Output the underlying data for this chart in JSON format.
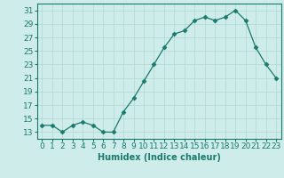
{
  "x": [
    0,
    1,
    2,
    3,
    4,
    5,
    6,
    7,
    8,
    9,
    10,
    11,
    12,
    13,
    14,
    15,
    16,
    17,
    18,
    19,
    20,
    21,
    22,
    23
  ],
  "y": [
    14,
    14,
    13,
    14,
    14.5,
    14,
    13,
    13,
    16,
    18,
    20.5,
    23,
    25.5,
    27.5,
    28,
    29.5,
    30,
    29.5,
    30,
    31,
    29.5,
    25.5,
    23,
    21
  ],
  "line_color": "#1a7a6e",
  "marker": "D",
  "marker_size": 2.5,
  "bg_color": "#ceecea",
  "grid_color": "#b0d8d4",
  "xlabel": "Humidex (Indice chaleur)",
  "xlim": [
    -0.5,
    23.5
  ],
  "ylim": [
    12,
    32
  ],
  "yticks": [
    13,
    15,
    17,
    19,
    21,
    23,
    25,
    27,
    29,
    31
  ],
  "xtick_labels": [
    "0",
    "1",
    "2",
    "3",
    "4",
    "5",
    "6",
    "7",
    "8",
    "9",
    "10",
    "11",
    "12",
    "13",
    "14",
    "15",
    "16",
    "17",
    "18",
    "19",
    "20",
    "21",
    "22",
    "23"
  ],
  "axis_fontsize": 7,
  "tick_fontsize": 6.5
}
